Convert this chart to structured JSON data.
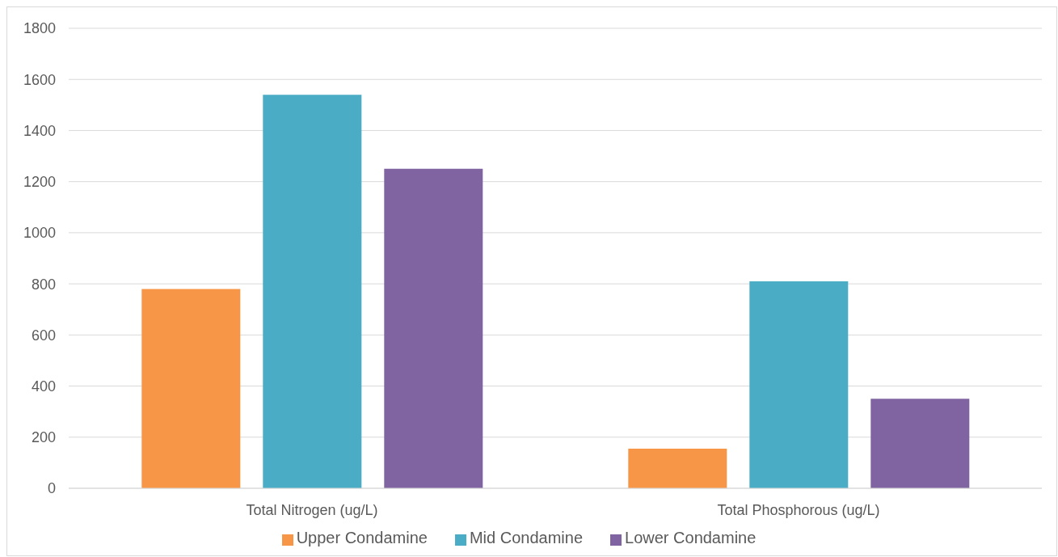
{
  "chart_data": {
    "type": "bar",
    "categories": [
      "Total Nitrogen (ug/L)",
      "Total Phosphorous (ug/L)"
    ],
    "series": [
      {
        "name": "Upper Condamine",
        "color": "#f79646",
        "values": [
          780,
          155
        ]
      },
      {
        "name": "Mid Condamine",
        "color": "#4bacc6",
        "values": [
          1540,
          810
        ]
      },
      {
        "name": "Lower Condamine",
        "color": "#8064a2",
        "values": [
          1250,
          350
        ]
      }
    ],
    "ylim": [
      0,
      1800
    ],
    "yticks": [
      0,
      200,
      400,
      600,
      800,
      1000,
      1200,
      1400,
      1600,
      1800
    ],
    "grid": "y",
    "legend": "bottom"
  }
}
